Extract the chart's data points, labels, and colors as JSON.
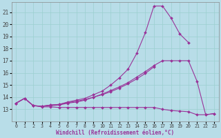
{
  "xlabel": "Windchill (Refroidissement éolien,°C)",
  "xlim": [
    -0.5,
    23.5
  ],
  "ylim": [
    12,
    21.8
  ],
  "yticks": [
    13,
    14,
    15,
    16,
    17,
    18,
    19,
    20,
    21
  ],
  "xticks": [
    0,
    1,
    2,
    3,
    4,
    5,
    6,
    7,
    8,
    9,
    10,
    11,
    12,
    13,
    14,
    15,
    16,
    17,
    18,
    19,
    20,
    21,
    22,
    23
  ],
  "bg_color": "#b8dde8",
  "grid_color": "#9bcfcf",
  "line_color": "#993399",
  "lines": [
    {
      "x": [
        0,
        1,
        2,
        3,
        4,
        5,
        6,
        7,
        8,
        9,
        10,
        11,
        12,
        13,
        14,
        15,
        16,
        17,
        18,
        19,
        20
      ],
      "y": [
        13.5,
        13.9,
        13.3,
        13.25,
        13.35,
        13.4,
        13.6,
        13.75,
        13.9,
        14.2,
        14.5,
        15.0,
        15.6,
        16.3,
        17.6,
        19.3,
        21.5,
        21.5,
        20.5,
        19.2,
        18.5
      ]
    },
    {
      "x": [
        0,
        1,
        2,
        3,
        4,
        5,
        6,
        7,
        8,
        9,
        10,
        11,
        12,
        13,
        14,
        15,
        16,
        17,
        18,
        19,
        20,
        21,
        22,
        23
      ],
      "y": [
        13.5,
        13.9,
        13.3,
        13.25,
        13.35,
        13.4,
        13.55,
        13.65,
        13.8,
        14.0,
        14.25,
        14.55,
        14.85,
        15.2,
        15.65,
        16.1,
        16.6,
        17.0,
        17.0,
        17.0,
        17.0,
        15.3,
        12.55,
        12.65
      ]
    },
    {
      "x": [
        0,
        1,
        2,
        3,
        4,
        5,
        6,
        7,
        8,
        9,
        10,
        11,
        12,
        13,
        14,
        15,
        16
      ],
      "y": [
        13.5,
        13.9,
        13.3,
        13.25,
        13.3,
        13.35,
        13.5,
        13.6,
        13.75,
        14.0,
        14.2,
        14.45,
        14.75,
        15.1,
        15.5,
        15.95,
        16.5
      ]
    },
    {
      "x": [
        0,
        1,
        2,
        3,
        4,
        5,
        6,
        7,
        8,
        9,
        10,
        11,
        12,
        13,
        14,
        15,
        16,
        17,
        18,
        19,
        20,
        21,
        22,
        23
      ],
      "y": [
        13.5,
        13.9,
        13.3,
        13.2,
        13.2,
        13.15,
        13.15,
        13.15,
        13.15,
        13.15,
        13.15,
        13.15,
        13.15,
        13.15,
        13.15,
        13.15,
        13.15,
        13.0,
        12.9,
        12.85,
        12.8,
        12.55,
        12.55,
        12.65
      ]
    }
  ]
}
